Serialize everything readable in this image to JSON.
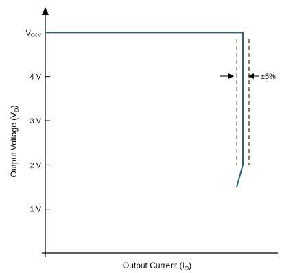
{
  "chart_data": {
    "type": "line",
    "xlabel": "Output Current (I",
    "xlabel_sub": "O",
    "xlabel_suffix": ")",
    "ylabel": "Output Voltage (V",
    "ylabel_sub": "O",
    "ylabel_suffix": ")",
    "y_ticks": [
      {
        "label": "1 V",
        "value": 1
      },
      {
        "label": "2 V",
        "value": 2
      },
      {
        "label": "3 V",
        "value": 3
      },
      {
        "label": "4 V",
        "value": 4
      },
      {
        "label": "V",
        "sub": "OCV",
        "value": 5
      }
    ],
    "ylim": [
      0.0,
      5.55
    ],
    "xlim": [
      0,
      1
    ],
    "grid": false,
    "series": [
      {
        "color": "#2a6478",
        "points": [
          [
            0,
            5
          ],
          [
            0.96,
            5
          ],
          [
            0.96,
            2.0
          ],
          [
            0.93,
            1.5
          ]
        ]
      }
    ],
    "tolerance_lines": {
      "x": [
        0.93,
        0.99
      ],
      "y_range": [
        2.0,
        4.85
      ],
      "colors": [
        "#3a6f32",
        "#000000"
      ]
    },
    "annotation": {
      "text": "±5%"
    }
  }
}
